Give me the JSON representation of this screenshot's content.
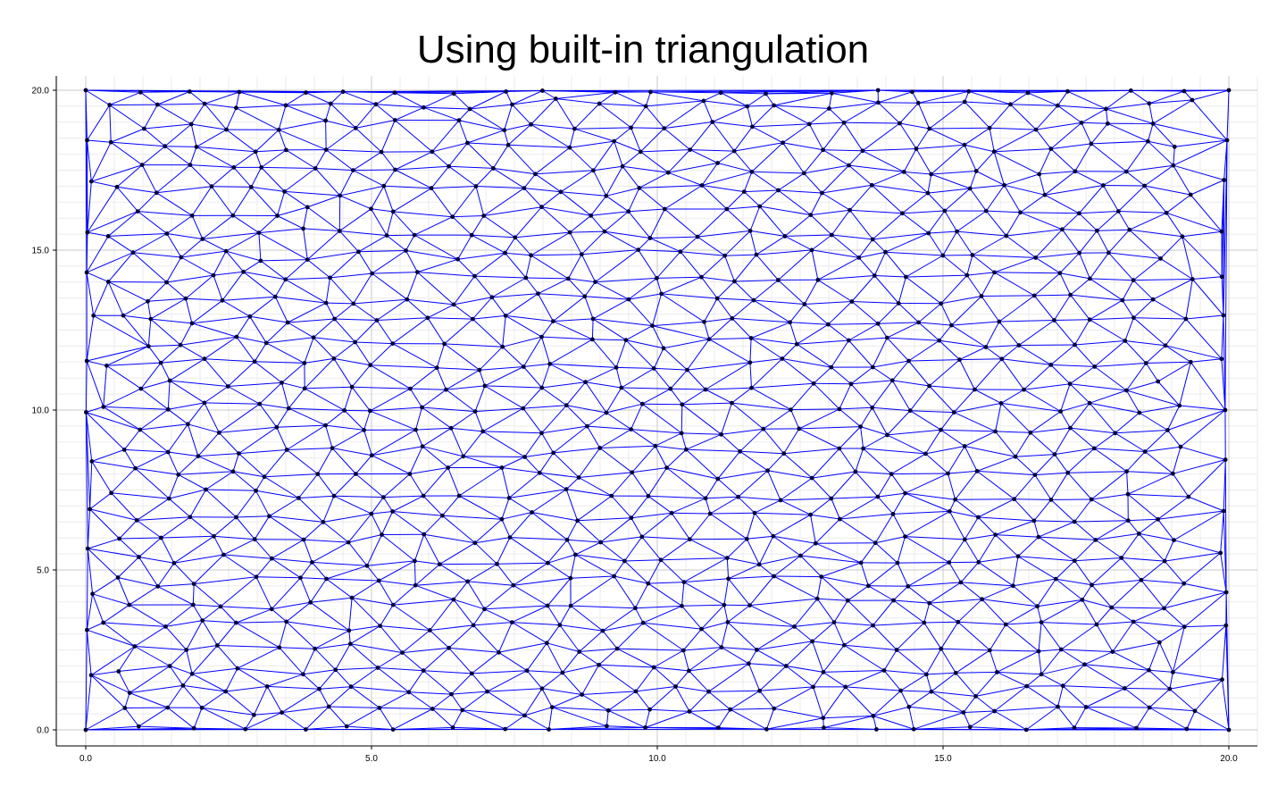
{
  "chart_data": {
    "type": "scatter",
    "title": "Using built-in triangulation",
    "xlabel": "",
    "ylabel": "",
    "xlim": [
      0.0,
      20.0
    ],
    "ylim": [
      0.0,
      20.0
    ],
    "x_ticks": [
      "0.0",
      "5.0",
      "10.0",
      "15.0",
      "20.0"
    ],
    "y_ticks": [
      "0.0",
      "5.0",
      "10.0",
      "15.0",
      "20.0"
    ],
    "grid": true,
    "minor_grid": true,
    "mesh_kind": "triangulation",
    "edge_color": "#0000ff",
    "point_color": "#000033",
    "grid_color": "#c8c8c8",
    "minor_grid_color": "#ebebeb",
    "point_count": 520
  }
}
